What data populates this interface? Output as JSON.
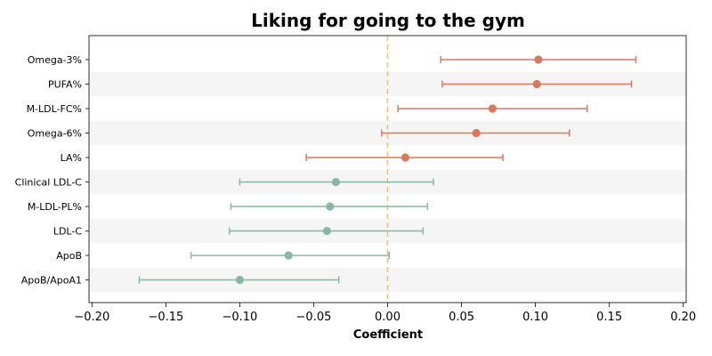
{
  "chart_data": {
    "type": "forest",
    "title": "Liking for going to the gym",
    "xlabel": "Coefficient",
    "ylabel": "",
    "xlim": [
      -0.202,
      0.202
    ],
    "xticks": [
      -0.2,
      -0.15,
      -0.1,
      -0.05,
      0.0,
      0.05,
      0.1,
      0.15,
      0.2
    ],
    "xtick_labels": [
      "−0.20",
      "−0.15",
      "−0.10",
      "−0.05",
      "0.00",
      "0.05",
      "0.10",
      "0.15",
      "0.20"
    ],
    "reference_line": 0,
    "grid": false,
    "colors": {
      "positive": "#d9785e",
      "negative": "#86b9a0",
      "reference": "#f2c27a",
      "band": "#f5f5f5"
    },
    "rows": [
      {
        "label": "Omega-3%",
        "estimate": 0.102,
        "ci_low": 0.036,
        "ci_high": 0.168
      },
      {
        "label": "PUFA%",
        "estimate": 0.101,
        "ci_low": 0.037,
        "ci_high": 0.165
      },
      {
        "label": "M-LDL-FC%",
        "estimate": 0.071,
        "ci_low": 0.007,
        "ci_high": 0.135
      },
      {
        "label": "Omega-6%",
        "estimate": 0.06,
        "ci_low": -0.004,
        "ci_high": 0.123
      },
      {
        "label": "LA%",
        "estimate": 0.012,
        "ci_low": -0.055,
        "ci_high": 0.078
      },
      {
        "label": "Clinical LDL-C",
        "estimate": -0.035,
        "ci_low": -0.1,
        "ci_high": 0.031
      },
      {
        "label": "M-LDL-PL%",
        "estimate": -0.039,
        "ci_low": -0.106,
        "ci_high": 0.027
      },
      {
        "label": "LDL-C",
        "estimate": -0.041,
        "ci_low": -0.107,
        "ci_high": 0.024
      },
      {
        "label": "ApoB",
        "estimate": -0.067,
        "ci_low": -0.133,
        "ci_high": 0.001
      },
      {
        "label": "ApoB/ApoA1",
        "estimate": -0.1,
        "ci_low": -0.168,
        "ci_high": -0.033
      }
    ]
  }
}
